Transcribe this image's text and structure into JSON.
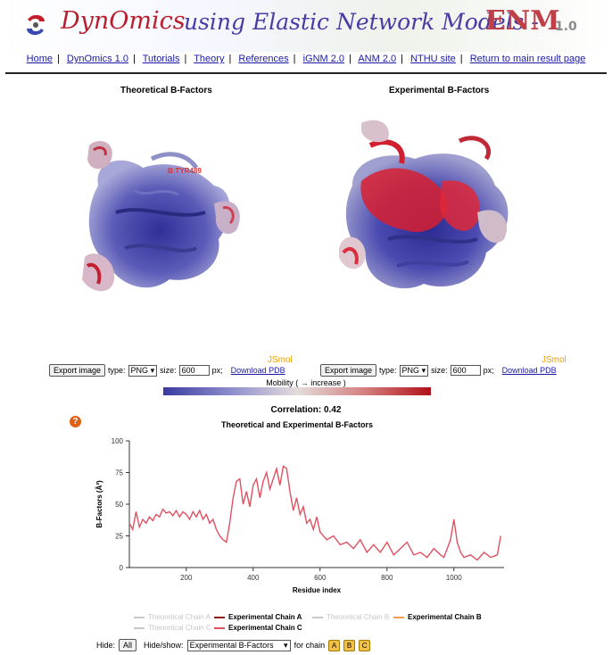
{
  "header": {
    "brand": "DynOmics",
    "subtitle": "using Elastic Network Models -",
    "enm": "ENM",
    "version": "1.0"
  },
  "nav": [
    "Home",
    "DynOmics 1.0",
    "Tutorials",
    "Theory",
    "References",
    "iGNM 2.0",
    "ANM 2.0",
    "NTHU site",
    "Return to main result page"
  ],
  "viewers": {
    "left": {
      "title": "Theoretical B-Factors",
      "label": "B:TYR489",
      "jsmol": "JSmol",
      "export": "Export image",
      "type_label": "type:",
      "type_value": "PNG",
      "size_label": "size:",
      "size_value": "600",
      "px": "px;",
      "download": "Download PDB"
    },
    "right": {
      "title": "Experimental B-Factors",
      "jsmol": "JSmol",
      "export": "Export image",
      "type_label": "type:",
      "type_value": "PNG",
      "size_label": "size:",
      "size_value": "600",
      "px": "px;",
      "download": "Download PDB"
    }
  },
  "mobility": "Mobility ( → increase )",
  "correlation": "Correlation: 0.42",
  "chart_title": "Theoretical and Experimental B-Factors",
  "chart_data": {
    "type": "line",
    "title": "Theoretical and Experimental B-Factors",
    "xlabel": "Residue index",
    "ylabel": "B-Factors (Å²)",
    "xlim": [
      30,
      1150
    ],
    "ylim": [
      0,
      100
    ],
    "xticks": [
      200,
      400,
      600,
      800,
      1000
    ],
    "yticks": [
      0,
      25,
      50,
      75,
      100
    ],
    "series": [
      {
        "name": "Experimental Chain C",
        "color": "#e05060",
        "x": [
          30,
          40,
          50,
          60,
          70,
          80,
          90,
          100,
          110,
          120,
          130,
          140,
          150,
          160,
          170,
          180,
          190,
          200,
          210,
          220,
          230,
          240,
          250,
          260,
          270,
          280,
          290,
          300,
          310,
          320,
          330,
          340,
          350,
          360,
          370,
          380,
          390,
          400,
          410,
          420,
          430,
          440,
          450,
          460,
          470,
          480,
          490,
          500,
          510,
          520,
          530,
          540,
          550,
          560,
          570,
          580,
          590,
          600,
          620,
          640,
          660,
          680,
          700,
          720,
          740,
          760,
          780,
          800,
          820,
          840,
          860,
          880,
          900,
          920,
          940,
          960,
          970,
          980,
          990,
          1000,
          1010,
          1020,
          1030,
          1050,
          1070,
          1090,
          1110,
          1130,
          1140
        ],
        "values": [
          35,
          30,
          44,
          32,
          38,
          35,
          40,
          37,
          42,
          40,
          46,
          43,
          44,
          41,
          45,
          40,
          44,
          42,
          38,
          44,
          40,
          45,
          38,
          42,
          35,
          38,
          30,
          25,
          22,
          20,
          35,
          55,
          68,
          70,
          50,
          60,
          48,
          65,
          70,
          55,
          68,
          75,
          62,
          70,
          78,
          65,
          80,
          78,
          60,
          45,
          55,
          42,
          48,
          35,
          38,
          30,
          40,
          28,
          22,
          25,
          18,
          20,
          15,
          22,
          12,
          18,
          12,
          20,
          10,
          15,
          20,
          10,
          12,
          8,
          15,
          10,
          8,
          15,
          22,
          38,
          20,
          12,
          8,
          10,
          6,
          12,
          8,
          10,
          25
        ]
      }
    ]
  },
  "legend": [
    {
      "label": "Theoretical Chain A",
      "color": "#c8c8c8",
      "active": false
    },
    {
      "label": "Experimental Chain A",
      "color": "#8b1a1a",
      "active": true
    },
    {
      "label": "Theoretical Chain B",
      "color": "#c8c8c8",
      "active": false
    },
    {
      "label": "Experimental Chain B",
      "color": "#f0a050",
      "active": true
    },
    {
      "label": "Theoretical Chain C",
      "color": "#c8c8c8",
      "active": false
    },
    {
      "label": "Experimental Chain C",
      "color": "#e05060",
      "active": true
    }
  ],
  "controls": {
    "hide_label": "Hide:",
    "all_button": "All",
    "hideshow_label": "Hide/show:",
    "hideshow_value": "Experimental B-Factors",
    "for_chain": "for chain",
    "chains": [
      "A",
      "B",
      "C"
    ]
  },
  "colors": {
    "brand": "#b81f2e",
    "subtitle": "#4a3aa5",
    "link": "#1a1aa6",
    "accent": "#f0a000"
  }
}
